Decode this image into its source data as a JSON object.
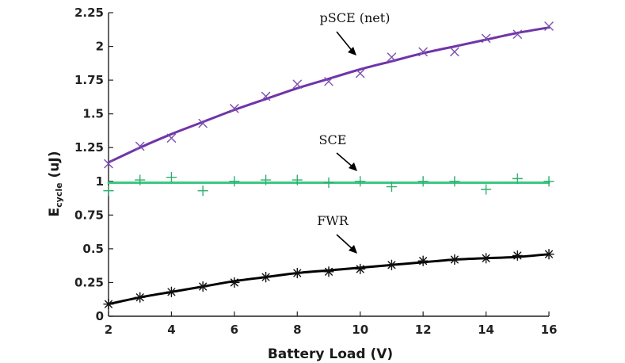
{
  "chart_data": {
    "type": "scatter",
    "title": "",
    "xlabel": "Battery Load (V)",
    "ylabel": {
      "main": "E",
      "subscript": "cycle",
      "unit": " (uJ)"
    },
    "xlim": [
      2,
      16
    ],
    "ylim": [
      0,
      2.25
    ],
    "xticks": [
      2,
      4,
      6,
      8,
      10,
      12,
      14,
      16
    ],
    "yticks": [
      0,
      0.25,
      0.5,
      0.75,
      1,
      1.25,
      1.5,
      1.75,
      2,
      2.25
    ],
    "ytick_labels": [
      "0",
      "0.25",
      "0.5",
      "0.75",
      "1",
      "1.25",
      "1.5",
      "1.75",
      "2",
      "2.25"
    ],
    "x": [
      2,
      3,
      4,
      5,
      6,
      7,
      8,
      9,
      10,
      11,
      12,
      13,
      14,
      15,
      16
    ],
    "series": [
      {
        "name": "pSCE (net)",
        "label": "pSCE (net)",
        "marker": "x",
        "color": "#7a4fb0",
        "line_color": "#7034a8",
        "values": [
          1.13,
          1.26,
          1.32,
          1.43,
          1.54,
          1.63,
          1.72,
          1.74,
          1.8,
          1.92,
          1.96,
          1.96,
          2.06,
          2.09,
          2.15
        ],
        "fit": [
          1.14,
          1.25,
          1.35,
          1.44,
          1.53,
          1.61,
          1.69,
          1.76,
          1.83,
          1.89,
          1.95,
          2.0,
          2.05,
          2.1,
          2.14
        ]
      },
      {
        "name": "SCE",
        "label": "SCE",
        "marker": "+",
        "color": "#2fae6e",
        "line_color": "#3cc784",
        "values": [
          0.93,
          1.01,
          1.03,
          0.93,
          1.0,
          1.01,
          1.01,
          0.99,
          1.0,
          0.96,
          1.0,
          1.0,
          0.94,
          1.02,
          1.0
        ],
        "fit": [
          0.99,
          0.99,
          0.99,
          0.99,
          0.99,
          0.99,
          0.99,
          0.99,
          0.99,
          0.99,
          0.99,
          0.99,
          0.99,
          0.99,
          0.99
        ]
      },
      {
        "name": "FWR",
        "label": "FWR",
        "marker": "*",
        "color": "#111111",
        "line_color": "#000000",
        "values": [
          0.09,
          0.14,
          0.18,
          0.22,
          0.25,
          0.29,
          0.32,
          0.33,
          0.35,
          0.38,
          0.41,
          0.42,
          0.43,
          0.45,
          0.46
        ],
        "fit": [
          0.09,
          0.14,
          0.18,
          0.22,
          0.26,
          0.29,
          0.32,
          0.34,
          0.36,
          0.38,
          0.4,
          0.42,
          0.43,
          0.44,
          0.46
        ]
      }
    ]
  }
}
